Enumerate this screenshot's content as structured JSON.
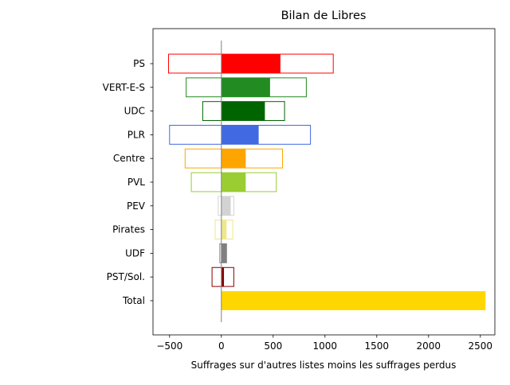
{
  "chart_data": {
    "type": "bar",
    "orientation": "horizontal",
    "title": "Bilan de Libres",
    "xlabel": "Suffrages sur d'autres listes moins les suffrages perdus",
    "ylabel": "",
    "xlim": [
      -660,
      2640
    ],
    "x_ticks": [
      -500,
      0,
      500,
      1000,
      1500,
      2000,
      2500
    ],
    "grid": false,
    "categories": [
      "PS",
      "VERT-E-S",
      "UDC",
      "PLR",
      "Centre",
      "PVL",
      "PEV",
      "Pirates",
      "UDF",
      "PST/Sol.",
      "Total"
    ],
    "series": [
      {
        "role": "range (outlined)",
        "values": [
          [
            -510,
            1080
          ],
          [
            -340,
            820
          ],
          [
            -180,
            610
          ],
          [
            -500,
            860
          ],
          [
            -350,
            590
          ],
          [
            -290,
            530
          ],
          [
            -30,
            120
          ],
          [
            -60,
            110
          ],
          [
            -15,
            50
          ],
          [
            -90,
            120
          ],
          [
            0,
            0
          ]
        ]
      },
      {
        "role": "net (filled)",
        "values": [
          570,
          470,
          420,
          360,
          235,
          235,
          90,
          50,
          50,
          25,
          2550
        ]
      }
    ],
    "colors": [
      "#ff0000",
      "#228b22",
      "#006400",
      "#4169e1",
      "#ffa500",
      "#9acd32",
      "#d3d3d3",
      "#f0e68c",
      "#808080",
      "#8b0000",
      "#ffd700"
    ]
  }
}
